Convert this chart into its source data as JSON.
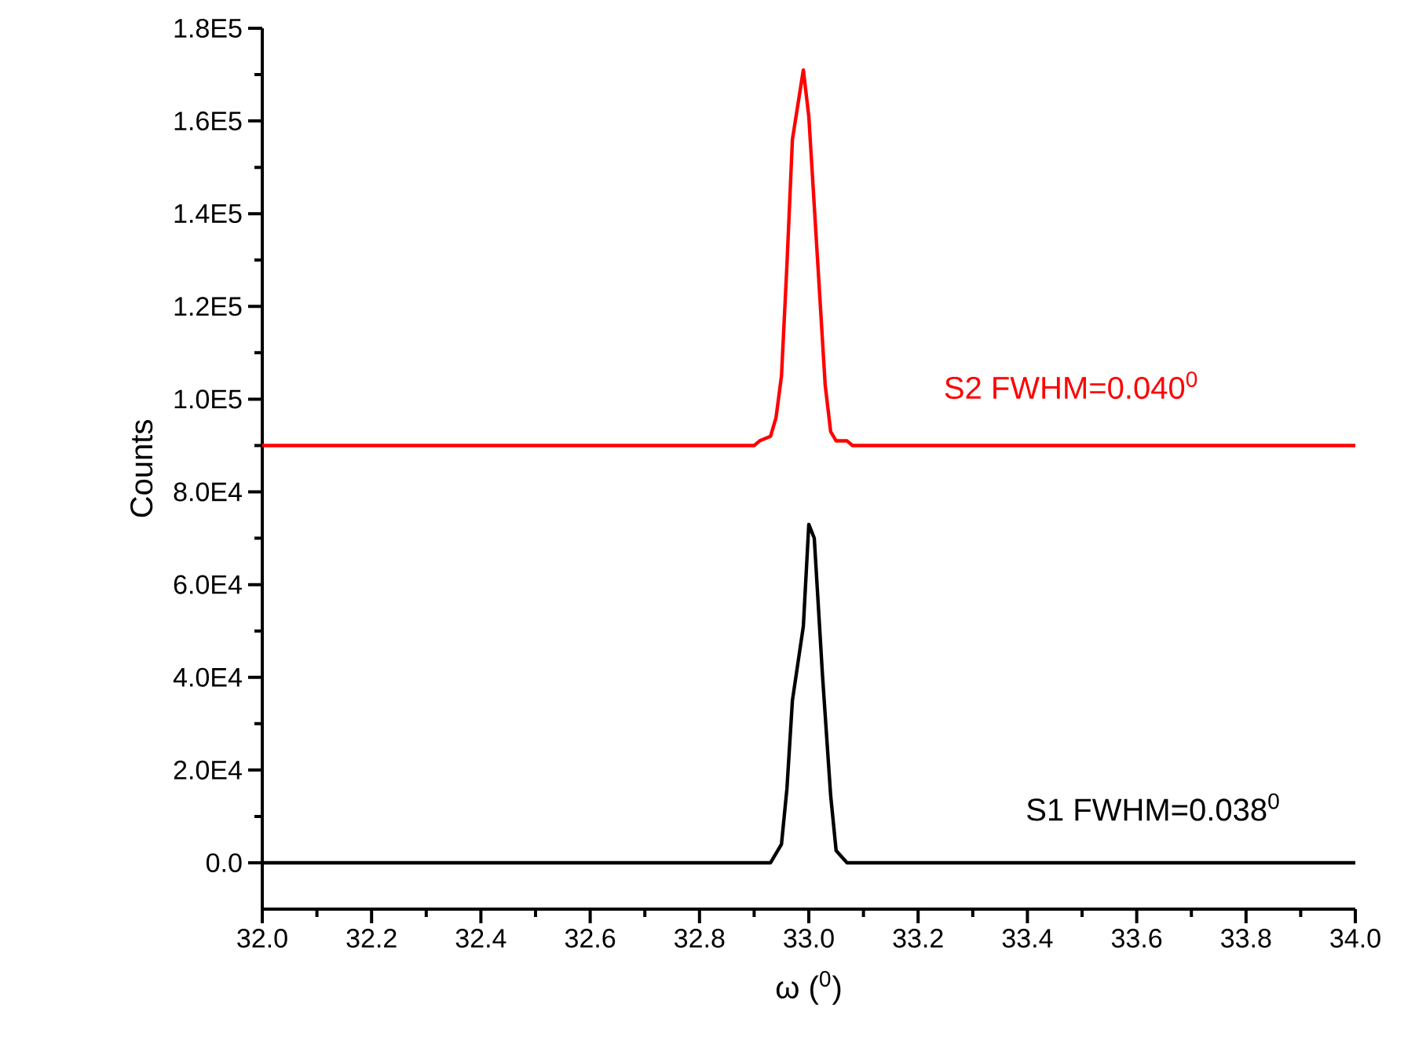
{
  "chart_data": {
    "type": "line",
    "xlabel": "ω ($^{0}$)",
    "ylabel": "Counts",
    "xlim": [
      32.0,
      34.0
    ],
    "ylim": [
      -10000,
      180000
    ],
    "xticks": [
      {
        "value": 32.0,
        "label": "32.0"
      },
      {
        "value": 32.2,
        "label": "32.2"
      },
      {
        "value": 32.4,
        "label": "32.4"
      },
      {
        "value": 32.6,
        "label": "32.6"
      },
      {
        "value": 32.8,
        "label": "32.8"
      },
      {
        "value": 33.0,
        "label": "33.0"
      },
      {
        "value": 33.2,
        "label": "33.2"
      },
      {
        "value": 33.4,
        "label": "33.4"
      },
      {
        "value": 33.6,
        "label": "33.6"
      },
      {
        "value": 33.8,
        "label": "33.8"
      },
      {
        "value": 34.0,
        "label": "34.0"
      }
    ],
    "yticks": [
      {
        "value": 0,
        "label": "0.0"
      },
      {
        "value": 20000,
        "label": "2.0E4"
      },
      {
        "value": 40000,
        "label": "4.0E4"
      },
      {
        "value": 60000,
        "label": "6.0E4"
      },
      {
        "value": 80000,
        "label": "8.0E4"
      },
      {
        "value": 100000,
        "label": "1.0E5"
      },
      {
        "value": 120000,
        "label": "1.2E5"
      },
      {
        "value": 140000,
        "label": "1.4E5"
      },
      {
        "value": 160000,
        "label": "1.6E5"
      },
      {
        "value": 180000,
        "label": "1.8E5"
      }
    ],
    "grid": false,
    "legend": false,
    "marker": "none",
    "line_style": "solid",
    "series": [
      {
        "name": "S1 FWHM=0.038$^{0}$",
        "color": "#000000",
        "x": [
          32.0,
          32.93,
          32.95,
          32.96,
          32.97,
          32.99,
          33.0,
          33.01,
          33.025,
          33.04,
          33.05,
          33.07,
          34.0
        ],
        "values": [
          0,
          0,
          4000,
          16000,
          35000,
          51000,
          73000,
          70000,
          40500,
          14500,
          2600,
          0,
          0
        ]
      },
      {
        "name": "S2 FWHM=0.040$^{0}$",
        "color": "#ff0000",
        "x": [
          32.0,
          32.9,
          32.91,
          32.93,
          32.94,
          32.95,
          32.96,
          32.97,
          32.99,
          33.0,
          33.015,
          33.03,
          33.04,
          33.05,
          33.07,
          33.08,
          34.0
        ],
        "values": [
          90000,
          90000,
          91000,
          92000,
          96000,
          105000,
          129000,
          156000,
          171000,
          161000,
          132000,
          103000,
          93000,
          91000,
          91000,
          90000,
          90000
        ]
      }
    ]
  }
}
